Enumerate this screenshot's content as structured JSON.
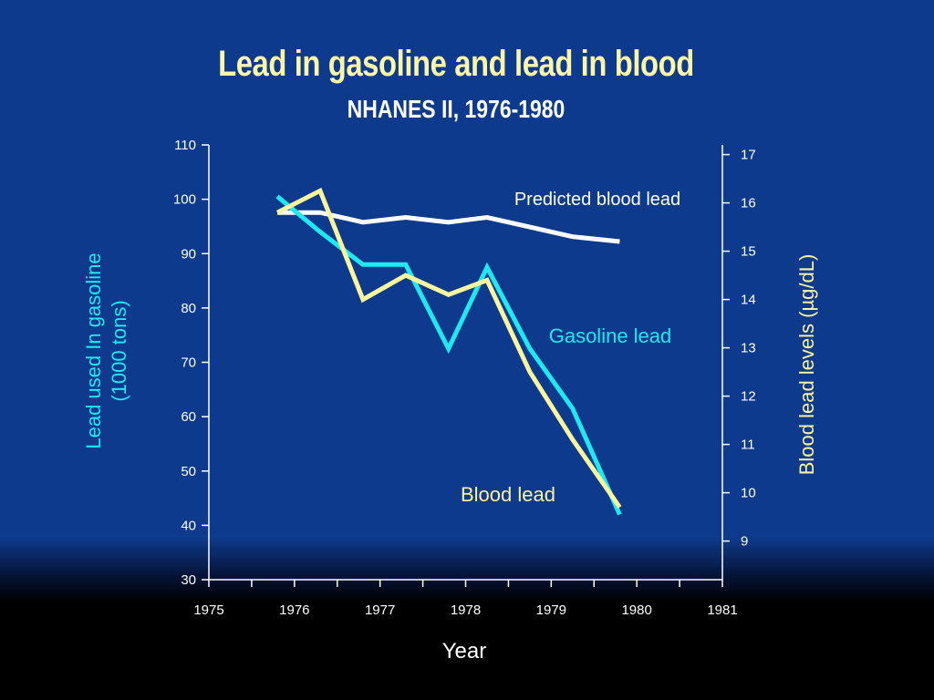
{
  "title": "Lead in gasoline and lead in blood",
  "subtitle": "NHANES II, 1976-1980",
  "colors": {
    "background": "#0d3a8c",
    "gasoline": "#1ee8f0",
    "blood": "#fbf59b",
    "predicted": "#ffffff",
    "title": "#fdf7a6"
  },
  "chart_data": {
    "type": "line",
    "title": "Lead in gasoline and lead in blood",
    "subtitle": "NHANES II, 1976-1980",
    "xlabel": "Year",
    "xlim": [
      1975,
      1981
    ],
    "x_ticks": [
      "1975",
      "1976",
      "1977",
      "1978",
      "1979",
      "1980",
      "1981"
    ],
    "y_left": {
      "label_line1": "Lead used In gasoline",
      "label_line2": "(1000 tons)",
      "range": [
        30,
        110
      ],
      "ticks": [
        "110",
        "100",
        "90",
        "80",
        "70",
        "60",
        "50",
        "40",
        "30"
      ]
    },
    "y_right": {
      "label": "Blood lead levels (µg/dL)",
      "range": [
        8.2,
        17.2
      ],
      "ticks": [
        "17",
        "16",
        "15",
        "14",
        "13",
        "12",
        "11",
        "10",
        "9"
      ]
    },
    "series": [
      {
        "name": "Gasoline lead",
        "axis": "left",
        "color": "#1ee8f0",
        "x": [
          1975.8,
          1976.3,
          1976.8,
          1977.3,
          1977.8,
          1978.25,
          1978.75,
          1979.25,
          1979.8
        ],
        "values": [
          100.5,
          94,
          88,
          88,
          72.5,
          87.5,
          72.5,
          61.5,
          42
        ]
      },
      {
        "name": "Blood lead",
        "axis": "right",
        "color": "#fbf59b",
        "x": [
          1975.8,
          1976.3,
          1976.8,
          1977.3,
          1977.8,
          1978.25,
          1978.75,
          1979.25,
          1979.8
        ],
        "values": [
          15.8,
          16.25,
          14.0,
          14.5,
          14.1,
          14.4,
          12.5,
          11.1,
          9.7
        ]
      },
      {
        "name": "Predicted blood lead",
        "axis": "right",
        "color": "#ffffff",
        "x": [
          1975.8,
          1976.3,
          1976.8,
          1977.3,
          1977.8,
          1978.25,
          1978.75,
          1979.25,
          1979.8
        ],
        "values": [
          15.8,
          15.8,
          15.6,
          15.7,
          15.6,
          15.7,
          15.5,
          15.3,
          15.2
        ]
      }
    ],
    "annotations": [
      {
        "text": "Predicted blood lead",
        "series": "Predicted blood lead"
      },
      {
        "text": "Gasoline lead",
        "series": "Gasoline lead"
      },
      {
        "text": "Blood lead",
        "series": "Blood lead"
      }
    ]
  }
}
